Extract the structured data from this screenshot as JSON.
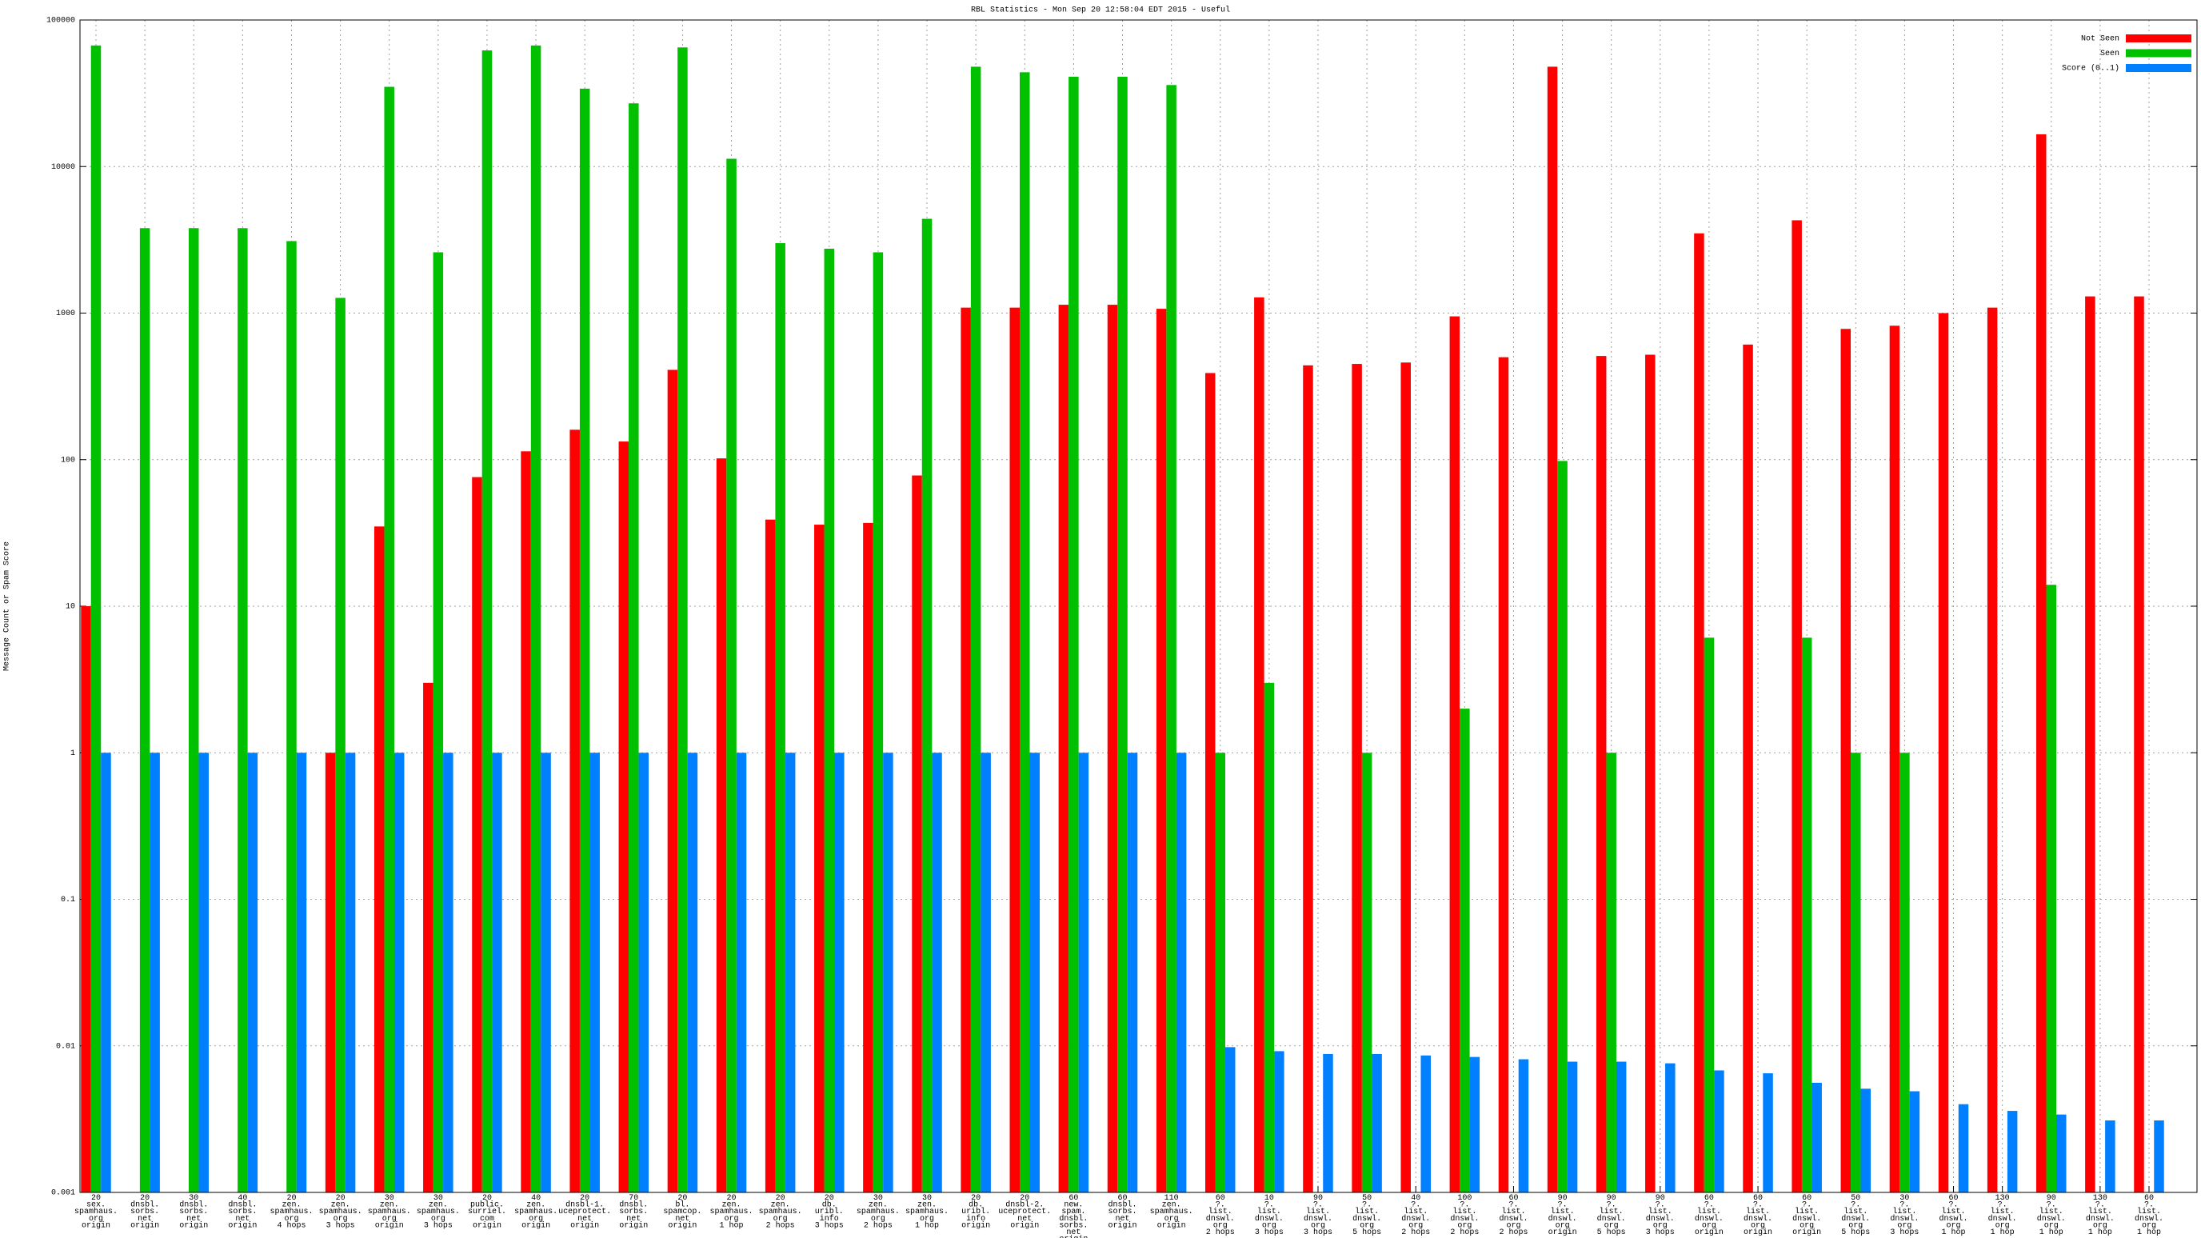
{
  "chart_data": {
    "type": "bar",
    "title": "RBL Statistics - Mon Sep 20 12:58:04 EDT 2015 - Useful",
    "y_label": "Message Count or Spam Score",
    "log_scale": true,
    "grid": true,
    "legend_position": "upper right",
    "ylim": [
      0.001,
      100000
    ],
    "yticks": [
      0.001,
      0.01,
      0.1,
      1,
      10,
      100,
      1000,
      10000,
      100000
    ],
    "categories": [
      [
        "20",
        "sex.",
        "spamhaus.",
        "org",
        "origin"
      ],
      [
        "20",
        "dnsbl.",
        "sorbs.",
        "net",
        "origin"
      ],
      [
        "30",
        "dnsbl.",
        "sorbs.",
        "net",
        "origin"
      ],
      [
        "40",
        "dnsbl.",
        "sorbs.",
        "net",
        "origin"
      ],
      [
        "20",
        "zen.",
        "spamhaus.",
        "org",
        "4 hops"
      ],
      [
        "20",
        "zen.",
        "spamhaus.",
        "org",
        "3 hops"
      ],
      [
        "30",
        "zen.",
        "spamhaus.",
        "org",
        "origin"
      ],
      [
        "30",
        "zen.",
        "spamhaus.",
        "org",
        "3 hops"
      ],
      [
        "20",
        "public.",
        "surriel.",
        "com",
        "origin"
      ],
      [
        "40",
        "zen.",
        "spamhaus.",
        "org",
        "origin"
      ],
      [
        "20",
        "dnsbl-1.",
        "uceprotect.",
        "net",
        "origin"
      ],
      [
        "70",
        "dnsbl.",
        "sorbs.",
        "net",
        "origin"
      ],
      [
        "20",
        "bl.",
        "spamcop.",
        "net",
        "origin"
      ],
      [
        "20",
        "zen.",
        "spamhaus.",
        "org",
        "1 hop"
      ],
      [
        "20",
        "zen.",
        "spamhaus.",
        "org",
        "2 hops"
      ],
      [
        "20",
        "db.",
        "uribl.",
        "info",
        "3 hops"
      ],
      [
        "30",
        "zen.",
        "spamhaus.",
        "org",
        "2 hops"
      ],
      [
        "30",
        "zen.",
        "spamhaus.",
        "org",
        "1 hop"
      ],
      [
        "20",
        "db.",
        "uribl.",
        "info",
        "origin"
      ],
      [
        "20",
        "dnsbl-2.",
        "uceprotect.",
        "net",
        "origin"
      ],
      [
        "60",
        "new.",
        "spam.",
        "dnsbl.",
        "sorbs.",
        "net",
        "origin"
      ],
      [
        "60",
        "dnsbl.",
        "sorbs.",
        "net",
        "origin"
      ],
      [
        "110",
        "zen.",
        "spamhaus.",
        "org",
        "origin"
      ],
      [
        "60",
        "?.",
        "list.",
        "dnswl.",
        "org",
        "2 hops"
      ],
      [
        "10",
        "?.",
        "list.",
        "dnswl.",
        "org",
        "3 hops"
      ],
      [
        "90",
        "?.",
        "list.",
        "dnswl.",
        "org",
        "3 hops"
      ],
      [
        "50",
        "?.",
        "list.",
        "dnswl.",
        "org",
        "5 hops"
      ],
      [
        "40",
        "?.",
        "list.",
        "dnswl.",
        "org",
        "2 hops"
      ],
      [
        "100",
        "?.",
        "list.",
        "dnswl.",
        "org",
        "2 hops"
      ],
      [
        "60",
        "?.",
        "list.",
        "dnswl.",
        "org",
        "2 hops"
      ],
      [
        "90",
        "?.",
        "list.",
        "dnswl.",
        "org",
        "origin"
      ],
      [
        "90",
        "?.",
        "list.",
        "dnswl.",
        "org",
        "5 hops"
      ],
      [
        "90",
        "?.",
        "list.",
        "dnswl.",
        "org",
        "3 hops"
      ],
      [
        "60",
        "?.",
        "list.",
        "dnswl.",
        "org",
        "origin"
      ],
      [
        "60",
        "?.",
        "list.",
        "dnswl.",
        "org",
        "origin"
      ],
      [
        "60",
        "?.",
        "list.",
        "dnswl.",
        "org",
        "origin"
      ],
      [
        "50",
        "?.",
        "list.",
        "dnswl.",
        "org",
        "5 hops"
      ],
      [
        "30",
        "?.",
        "list.",
        "dnswl.",
        "org",
        "3 hops"
      ],
      [
        "60",
        "?.",
        "list.",
        "dnswl.",
        "org",
        "1 hop"
      ],
      [
        "130",
        "?.",
        "list.",
        "dnswl.",
        "org",
        "1 hop"
      ],
      [
        "90",
        "?.",
        "list.",
        "dnswl.",
        "org",
        "1 hop"
      ],
      [
        "130",
        "?.",
        "list.",
        "dnswl.",
        "org",
        "1 hop"
      ],
      [
        "60",
        "?.",
        "list.",
        "dnswl.",
        "org",
        "1 hop"
      ]
    ],
    "series": [
      {
        "name": "Not Seen",
        "color": "#ff0000",
        "values": [
          10,
          null,
          null,
          null,
          null,
          1,
          35,
          3,
          76,
          114,
          160,
          133,
          410,
          102,
          39,
          36,
          37,
          78,
          1090,
          1090,
          1140,
          1140,
          1070,
          390,
          1280,
          440,
          450,
          460,
          950,
          500,
          48000,
          510,
          520,
          3500,
          610,
          4300,
          780,
          820,
          1000,
          1090,
          16600,
          1300,
          1300
        ]
      },
      {
        "name": "Seen",
        "color": "#00c000",
        "values": [
          67000,
          3800,
          3800,
          3800,
          3100,
          1270,
          35000,
          2600,
          62000,
          67000,
          34000,
          27000,
          65000,
          11300,
          3000,
          2750,
          2600,
          4400,
          48000,
          44000,
          41000,
          41000,
          36000,
          1,
          3,
          null,
          1,
          null,
          2,
          null,
          98,
          1,
          null,
          6.1,
          null,
          6.1,
          1,
          1,
          null,
          null,
          14,
          null,
          null
        ]
      },
      {
        "name": "Score (0..1)",
        "color": "#0080ff",
        "values": [
          1,
          1,
          1,
          1,
          1,
          1,
          1,
          1,
          1,
          1,
          1,
          1,
          1,
          1,
          1,
          1,
          1,
          1,
          1,
          1,
          1,
          1,
          1,
          0.0098,
          0.0092,
          0.0088,
          0.0088,
          0.0086,
          0.0084,
          0.0081,
          0.0078,
          0.0078,
          0.0076,
          0.0068,
          0.0065,
          0.0056,
          0.0051,
          0.0049,
          0.004,
          0.0036,
          0.0034,
          0.0031,
          0.0031
        ]
      }
    ]
  }
}
